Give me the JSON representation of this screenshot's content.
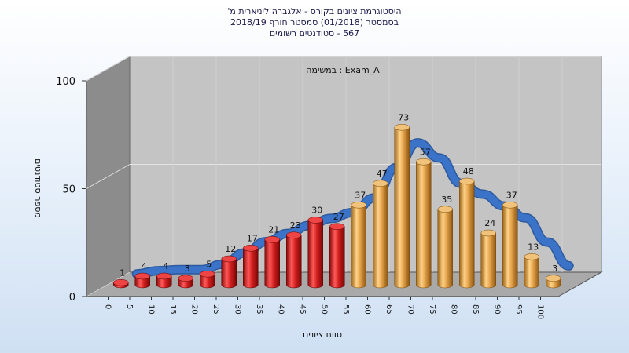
{
  "chart_data": {
    "type": "bar",
    "title_lines": [
      "היסטוגרמת ציונים בקורס - אלגברה ליניארית מ'",
      "בסמסטר (01/2018) סמסטר חורף 2018/19",
      "567 - סטודנטים רשומים"
    ],
    "legend": "Exam_A : במשימה",
    "xlabel": "טווח ציונים",
    "ylabel": "מספר סטודנטים",
    "ylim": [
      0,
      100
    ],
    "yticks": [
      0,
      50,
      100
    ],
    "categories": [
      "0",
      "5",
      "10",
      "15",
      "20",
      "25",
      "30",
      "35",
      "40",
      "45",
      "50",
      "55",
      "60",
      "65",
      "70",
      "75",
      "80",
      "85",
      "90",
      "95",
      "100"
    ],
    "values": [
      1,
      4,
      4,
      3,
      5,
      12,
      17,
      21,
      23,
      30,
      27,
      37,
      47,
      73,
      57,
      35,
      48,
      24,
      37,
      13,
      3
    ],
    "bar_colors": {
      "fail": "#d11f1f",
      "pass": "#e3a24a"
    },
    "pass_from_index": 11,
    "curve_color": "#3a73c8",
    "background_color": "#c4c4c4"
  }
}
